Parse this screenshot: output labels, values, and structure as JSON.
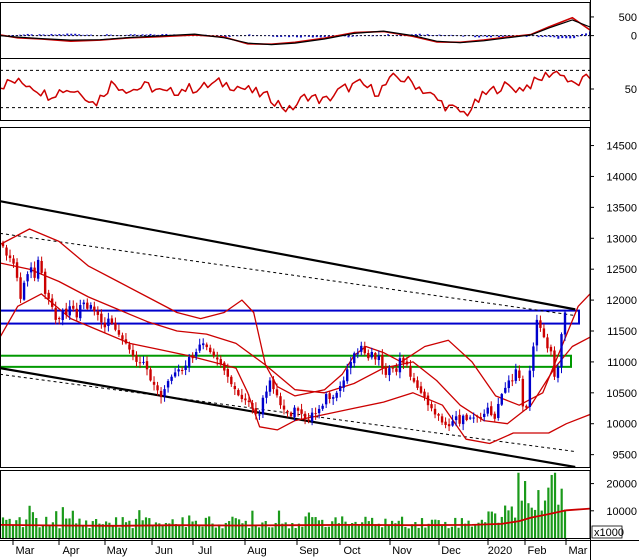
{
  "chart_data": {
    "type": "candlestick",
    "months": [
      "Mar",
      "Apr",
      "May",
      "Jun",
      "Jul",
      "Aug",
      "Sep",
      "Oct",
      "Nov",
      "Dec",
      "2020",
      "Feb",
      "Mar"
    ],
    "panels": [
      {
        "id": "macd",
        "yticks": [
          500,
          0
        ],
        "ylim": [
          -600,
          900
        ],
        "series": [
          {
            "role": "signal",
            "color": "#cc0000",
            "x": [
              0,
              0.03,
              0.07,
              0.12,
              0.17,
              0.22,
              0.27,
              0.33,
              0.38,
              0.42,
              0.46,
              0.5,
              0.55,
              0.6,
              0.65,
              0.7,
              0.74,
              0.78,
              0.82,
              0.86,
              0.9,
              0.93,
              0.97,
              1.0
            ],
            "y": [
              20,
              -60,
              -90,
              -150,
              -120,
              -60,
              -30,
              20,
              -40,
              -220,
              -230,
              -180,
              -70,
              80,
              110,
              -20,
              -170,
              -180,
              -120,
              -40,
              30,
              230,
              480,
              150
            ]
          },
          {
            "role": "macd",
            "color": "#000000",
            "x": [
              0,
              0.03,
              0.07,
              0.12,
              0.17,
              0.22,
              0.27,
              0.33,
              0.38,
              0.42,
              0.46,
              0.5,
              0.55,
              0.6,
              0.65,
              0.7,
              0.74,
              0.78,
              0.82,
              0.86,
              0.9,
              0.93,
              0.97,
              1.0
            ],
            "y": [
              0,
              -40,
              -80,
              -120,
              -110,
              -50,
              -10,
              40,
              -60,
              -200,
              -240,
              -200,
              -90,
              60,
              120,
              0,
              -150,
              -190,
              -140,
              -60,
              20,
              200,
              420,
              230
            ]
          }
        ]
      },
      {
        "id": "rsi",
        "yticks": [
          50
        ],
        "ylim": [
          0,
          100
        ],
        "levels": [
          80,
          20
        ],
        "series": [
          {
            "role": "rsi",
            "color": "#cc0000",
            "x": [
              0,
              0.02,
              0.05,
              0.08,
              0.11,
              0.14,
              0.16,
              0.19,
              0.22,
              0.25,
              0.28,
              0.31,
              0.34,
              0.37,
              0.4,
              0.43,
              0.46,
              0.49,
              0.52,
              0.55,
              0.58,
              0.61,
              0.64,
              0.67,
              0.7,
              0.73,
              0.76,
              0.79,
              0.82,
              0.85,
              0.88,
              0.91,
              0.93,
              0.95,
              0.97,
              1.0
            ],
            "y": [
              55,
              62,
              58,
              40,
              50,
              45,
              25,
              60,
              48,
              55,
              42,
              50,
              52,
              60,
              55,
              45,
              35,
              15,
              40,
              30,
              50,
              58,
              45,
              70,
              60,
              40,
              20,
              10,
              40,
              55,
              50,
              62,
              75,
              78,
              55,
              68
            ]
          }
        ]
      },
      {
        "id": "price",
        "yticks": [
          14500,
          14000,
          13500,
          13000,
          12500,
          12000,
          11500,
          11000,
          10500,
          10000,
          9500
        ],
        "ylim": [
          9300,
          14800
        ],
        "candles_close": [
          12870,
          12720,
          12680,
          12590,
          12360,
          12020,
          12280,
          12420,
          12530,
          12360,
          12650,
          12440,
          12100,
          12020,
          11890,
          11680,
          11700,
          11840,
          11760,
          11900,
          11860,
          11720,
          11920,
          11960,
          11860,
          11920,
          11820,
          11760,
          11640,
          11560,
          11700,
          11620,
          11520,
          11440,
          11360,
          11300,
          11200,
          11100,
          11000,
          10980,
          11000,
          10880,
          10700,
          10630,
          10540,
          10430,
          10560,
          10690,
          10760,
          10830,
          10880,
          10860,
          10940,
          11080,
          11060,
          11160,
          11280,
          11300,
          11240,
          11160,
          11100,
          11040,
          10960,
          10860,
          10760,
          10640,
          10560,
          10460,
          10400,
          10380,
          10350,
          10250,
          10160,
          10150,
          10420,
          10520,
          10700,
          10560,
          10460,
          10300,
          10230,
          10190,
          10120,
          10260,
          10210,
          10160,
          10080,
          10050,
          10180,
          10160,
          10240,
          10290,
          10480,
          10400,
          10430,
          10500,
          10610,
          10700,
          10880,
          11000,
          11140,
          11140,
          11260,
          11140,
          11060,
          11160,
          11040,
          11100,
          10900,
          10790,
          10900,
          10900,
          10840,
          11060,
          10980,
          10960,
          10760,
          10680,
          10580,
          10500,
          10430,
          10300,
          10250,
          10150,
          10130,
          10020,
          9980,
          9960,
          10040,
          10120,
          10000,
          10130,
          10060,
          10100,
          10100,
          10120,
          10080,
          10160,
          10260,
          10140,
          10080,
          10320,
          10480,
          10580,
          10700,
          10690,
          10880,
          10740,
          10280,
          10260,
          10860,
          11250,
          11680,
          11550,
          11400,
          11220,
          11170,
          10760,
          10920,
          11450,
          11800
        ],
        "lines": [
          {
            "role": "ma-upper",
            "color": "#cc0000",
            "x": [
              0,
              0.05,
              0.1,
              0.15,
              0.2,
              0.25,
              0.3,
              0.34,
              0.38,
              0.41,
              0.43,
              0.45,
              0.47,
              0.5,
              0.55,
              0.58,
              0.6,
              0.62,
              0.65,
              0.68,
              0.72,
              0.76,
              0.8,
              0.84,
              0.88,
              0.92,
              0.95,
              0.98,
              1.0
            ],
            "y": [
              12900,
              13150,
              12950,
              12550,
              12300,
              12050,
              11800,
              11700,
              11800,
              12000,
              11800,
              10950,
              10600,
              10450,
              10550,
              10800,
              11100,
              11250,
              11150,
              11000,
              11250,
              11350,
              11000,
              10450,
              10300,
              10500,
              11200,
              11900,
              12100
            ]
          },
          {
            "role": "ma-lower",
            "color": "#cc0000",
            "x": [
              0,
              0.03,
              0.07,
              0.12,
              0.17,
              0.22,
              0.27,
              0.32,
              0.36,
              0.4,
              0.42,
              0.44,
              0.47,
              0.5,
              0.55,
              0.6,
              0.65,
              0.7,
              0.75,
              0.79,
              0.83,
              0.87,
              0.9,
              0.93,
              0.96,
              1.0
            ],
            "y": [
              11400,
              11900,
              12100,
              11700,
              11500,
              11300,
              11200,
              11100,
              11000,
              10900,
              10500,
              9950,
              9900,
              10050,
              10150,
              10250,
              10350,
              10500,
              10300,
              9750,
              9680,
              9850,
              9850,
              9850,
              10000,
              10150
            ]
          },
          {
            "role": "ma-mid",
            "color": "#cc0000",
            "x": [
              0,
              0.05,
              0.1,
              0.15,
              0.2,
              0.25,
              0.3,
              0.35,
              0.4,
              0.45,
              0.5,
              0.55,
              0.6,
              0.65,
              0.7,
              0.74,
              0.78,
              0.82,
              0.86,
              0.9,
              0.94,
              0.97,
              1.0
            ],
            "y": [
              12600,
              12500,
              12300,
              12050,
              11850,
              11650,
              11500,
              11450,
              11300,
              10950,
              10550,
              10500,
              10650,
              10900,
              11000,
              10700,
              10300,
              10050,
              10000,
              10300,
              10900,
              11250,
              11400
            ]
          }
        ],
        "trendlines": [
          {
            "style": "solid",
            "from": [
              0.0,
              13600
            ],
            "to": [
              0.9,
              11850
            ]
          },
          {
            "style": "solid",
            "from": [
              0.0,
              10900
            ],
            "to": [
              0.9,
              9300
            ]
          },
          {
            "style": "dashed",
            "from": [
              0.0,
              13080
            ],
            "to": [
              0.9,
              11750
            ]
          },
          {
            "style": "dashed",
            "from": [
              0.0,
              10800
            ],
            "to": [
              0.9,
              9550
            ]
          }
        ],
        "zones": [
          {
            "color": "#0000cc",
            "low": 11620,
            "high": 11830
          },
          {
            "color": "#009900",
            "low": 10920,
            "high": 11100
          }
        ]
      },
      {
        "id": "volume",
        "yticks": [
          20000,
          10000
        ],
        "unit_label": "x1000",
        "ylim": [
          0,
          25000
        ],
        "volume_ma": {
          "color": "#cc0000",
          "x": [
            0,
            0.1,
            0.2,
            0.3,
            0.4,
            0.5,
            0.6,
            0.7,
            0.8,
            0.85,
            0.88,
            0.9,
            0.93,
            0.96,
            1.0
          ],
          "y": [
            4800,
            4600,
            4500,
            4700,
            4600,
            4700,
            4800,
            4700,
            4800,
            5200,
            6200,
            7500,
            8800,
            10200,
            10800
          ]
        }
      }
    ]
  }
}
